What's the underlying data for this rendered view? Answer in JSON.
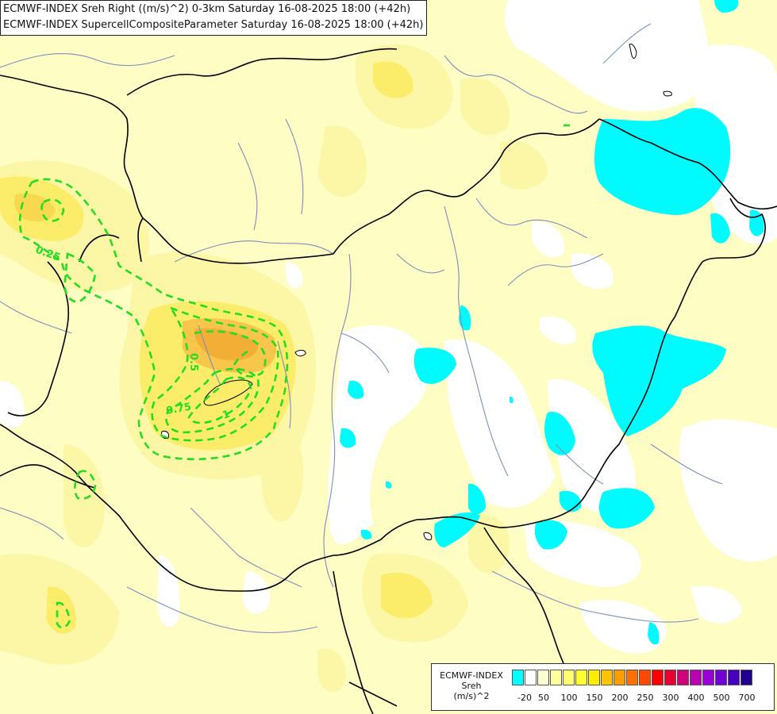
{
  "titles": {
    "line1": "ECMWF-INDEX Sreh Right ((m/s)^2) 0-3km Saturday 16-08-2025 18:00 (+42h)",
    "line2": "ECMWF-INDEX SupercellCompositeParameter Saturday 16-08-2025 18:00 (+42h)"
  },
  "legend": {
    "line1": "ECMWF-INDEX",
    "line2": "Sreh",
    "line3": "(m/s)^2",
    "colors": [
      "#00ffff",
      "#ffffff",
      "#ffffd0",
      "#ffff9e",
      "#ffff70",
      "#ffff30",
      "#ffec00",
      "#ffc400",
      "#ff9c00",
      "#ff7000",
      "#ff4800",
      "#ff0000",
      "#e80030",
      "#d0007a",
      "#b800b4",
      "#9a00d8",
      "#7000d8",
      "#4800c0",
      "#200090"
    ],
    "ticks": [
      "-20",
      "50",
      "100",
      "150",
      "200",
      "250",
      "300",
      "400",
      "500",
      "700"
    ]
  },
  "contour_labels": {
    "c025": "0.25",
    "c05": "0.5",
    "c075": "0.75",
    "c1": "1"
  },
  "colors": {
    "background": "#fefdc4",
    "contour": "#22dd22",
    "border": "#000000",
    "river": "#7a8ebf"
  }
}
